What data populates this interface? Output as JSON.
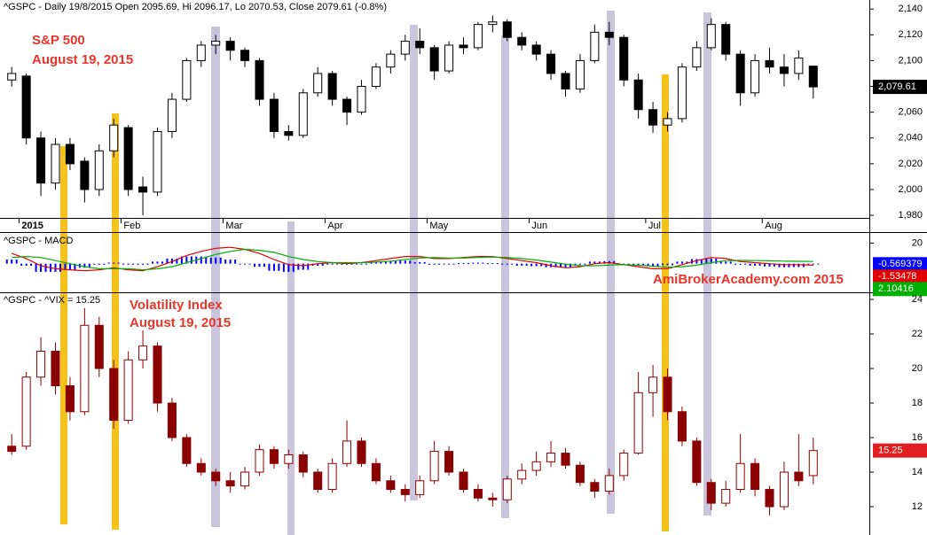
{
  "chart_data": [
    {
      "type": "candlestick",
      "title": "^GSPC - Daily 19/8/2015 Open 2095.69, Hi 2096.17, Lo 2070.53, Close 2079.61 (-0.8%)",
      "annotations": [
        "S&P 500",
        "August 19, 2015"
      ],
      "categories": [
        null,
        "2015",
        null,
        null,
        null,
        null,
        null,
        null,
        "Feb",
        null,
        null,
        null,
        null,
        null,
        null,
        "Mar",
        null,
        null,
        null,
        null,
        null,
        null,
        "Apr",
        null,
        null,
        null,
        null,
        null,
        null,
        "May",
        null,
        null,
        null,
        null,
        null,
        null,
        "Jun",
        null,
        null,
        null,
        null,
        null,
        null,
        null,
        "Jul",
        null,
        null,
        null,
        null,
        null,
        null,
        null,
        "Aug",
        null,
        null,
        null
      ],
      "ohlc": [
        [
          2085,
          2095,
          2080,
          2090
        ],
        [
          2088,
          2090,
          2035,
          2040
        ],
        [
          2040,
          2045,
          1995,
          2005
        ],
        [
          2005,
          2040,
          2000,
          2035
        ],
        [
          2035,
          2040,
          2015,
          2020
        ],
        [
          2022,
          2025,
          1990,
          2000
        ],
        [
          2000,
          2035,
          1995,
          2030
        ],
        [
          2030,
          2055,
          2025,
          2050
        ],
        [
          2048,
          2050,
          1995,
          2000
        ],
        [
          2002,
          2010,
          1980,
          1998
        ],
        [
          1998,
          2048,
          1995,
          2045
        ],
        [
          2045,
          2075,
          2040,
          2070
        ],
        [
          2070,
          2102,
          2068,
          2100
        ],
        [
          2100,
          2115,
          2095,
          2112
        ],
        [
          2112,
          2120,
          2105,
          2115
        ],
        [
          2115,
          2118,
          2100,
          2108
        ],
        [
          2108,
          2110,
          2095,
          2100
        ],
        [
          2100,
          2102,
          2065,
          2070
        ],
        [
          2070,
          2075,
          2040,
          2045
        ],
        [
          2045,
          2050,
          2038,
          2042
        ],
        [
          2042,
          2078,
          2040,
          2075
        ],
        [
          2075,
          2095,
          2072,
          2090
        ],
        [
          2090,
          2092,
          2065,
          2070
        ],
        [
          2070,
          2072,
          2050,
          2060
        ],
        [
          2060,
          2085,
          2058,
          2080
        ],
        [
          2080,
          2098,
          2078,
          2095
        ],
        [
          2095,
          2108,
          2090,
          2105
        ],
        [
          2105,
          2120,
          2100,
          2115
        ],
        [
          2115,
          2125,
          2105,
          2110
        ],
        [
          2110,
          2112,
          2085,
          2092
        ],
        [
          2092,
          2115,
          2090,
          2112
        ],
        [
          2112,
          2118,
          2105,
          2110
        ],
        [
          2110,
          2130,
          2108,
          2128
        ],
        [
          2128,
          2135,
          2122,
          2130
        ],
        [
          2130,
          2132,
          2115,
          2118
        ],
        [
          2118,
          2122,
          2108,
          2112
        ],
        [
          2112,
          2115,
          2100,
          2105
        ],
        [
          2105,
          2108,
          2085,
          2090
        ],
        [
          2090,
          2092,
          2072,
          2078
        ],
        [
          2078,
          2105,
          2075,
          2100
        ],
        [
          2100,
          2128,
          2098,
          2122
        ],
        [
          2122,
          2130,
          2112,
          2118
        ],
        [
          2118,
          2120,
          2080,
          2085
        ],
        [
          2085,
          2090,
          2055,
          2062
        ],
        [
          2062,
          2068,
          2044,
          2050
        ],
        [
          2050,
          2060,
          2045,
          2055
        ],
        [
          2055,
          2098,
          2052,
          2095
        ],
        [
          2095,
          2115,
          2092,
          2110
        ],
        [
          2110,
          2133,
          2108,
          2128
        ],
        [
          2128,
          2130,
          2100,
          2105
        ],
        [
          2105,
          2108,
          2065,
          2075
        ],
        [
          2075,
          2105,
          2072,
          2100
        ],
        [
          2100,
          2110,
          2090,
          2095
        ],
        [
          2095,
          2105,
          2080,
          2090
        ],
        [
          2090,
          2108,
          2085,
          2102
        ],
        [
          2095.69,
          2096.17,
          2070.53,
          2079.61
        ]
      ],
      "up_color": "#ffffff",
      "down_color": "#000000",
      "outline_color": "#000000",
      "ylim": [
        1967,
        2147
      ],
      "yticks": [
        {
          "value": 1980,
          "label": "1,980"
        },
        {
          "value": 2000,
          "label": "2,000"
        },
        {
          "value": 2020,
          "label": "2,020"
        },
        {
          "value": 2040,
          "label": "2,040"
        },
        {
          "value": 2060,
          "label": "2,060"
        },
        {
          "value": 2080,
          "label": "2,080"
        },
        {
          "value": 2100,
          "label": "2,100"
        },
        {
          "value": 2120,
          "label": "2,120"
        },
        {
          "value": 2140,
          "label": "2,140"
        }
      ],
      "last_value": {
        "value": 2079.61,
        "label": "2,079.61"
      },
      "last_color": "#000000"
    },
    {
      "type": "macd",
      "title": "^GSPC - MACD",
      "annotations": [
        "AmiBrokerAcademy.com 2015"
      ],
      "ylim": [
        -28,
        30
      ],
      "yticks": [
        20
      ],
      "series": [
        {
          "type": "bar",
          "color": "#0000ff",
          "last_value": -0.569379,
          "values": [
            4,
            -2,
            -8,
            -8,
            -6,
            -4,
            -1,
            1,
            -1,
            -1,
            2,
            5,
            7,
            7,
            6,
            4,
            0,
            -3,
            -7,
            -8,
            -6,
            -2,
            0,
            -1,
            0,
            1.5,
            2.5,
            3,
            1.5,
            -1,
            -0.5,
            0.5,
            1,
            0.5,
            -1,
            -2,
            -2.5,
            -3.5,
            -3.5,
            -1,
            2,
            2.5,
            0,
            -1.5,
            -2.5,
            -1.5,
            2,
            4.5,
            5,
            2,
            -1,
            -2,
            -2.8,
            -3.5,
            -3.3,
            -0.569379
          ]
        },
        {
          "type": "line",
          "color": "#e00000",
          "last_value": -1.53478,
          "values": [
            10,
            5,
            -2,
            -5,
            -6,
            -7,
            -6,
            -4,
            -6,
            -7,
            -3,
            2,
            8,
            12,
            15,
            16,
            14,
            10,
            4,
            -1,
            -2,
            0,
            1,
            0,
            1,
            3,
            5,
            7,
            7,
            5,
            5,
            6,
            7,
            7,
            5,
            3,
            1,
            -2,
            -4,
            -3,
            0,
            1,
            -1,
            -3,
            -5,
            -5,
            -1,
            3,
            6,
            5,
            2,
            1,
            0,
            -1,
            -1,
            -1.53478
          ]
        },
        {
          "type": "line",
          "color": "#00b000",
          "last_value": 2.10416,
          "values": [
            6,
            7,
            6,
            3,
            0,
            -3,
            -5,
            -5,
            -5,
            -6,
            -5,
            -3,
            1,
            5,
            9,
            12,
            14,
            13,
            11,
            7,
            4,
            2,
            1,
            1,
            1,
            1.5,
            2.5,
            4,
            5.5,
            6,
            5.5,
            5.5,
            6,
            6.5,
            6,
            5,
            3.5,
            1.5,
            -0.5,
            -2,
            -2,
            -1.5,
            -1,
            -1.5,
            -2.5,
            -3.5,
            -3,
            -1.5,
            1,
            3,
            3.2,
            3,
            2.8,
            2.5,
            2.3,
            2.10416
          ]
        }
      ]
    },
    {
      "type": "candlestick",
      "title": "^GSPC - ^VIX = 15.25",
      "annotations": [
        "Volatility Index",
        "August 19, 2015"
      ],
      "ohlc": [
        [
          15.5,
          16.2,
          15,
          15.2
        ],
        [
          15.5,
          19.8,
          15.3,
          19.5
        ],
        [
          19.5,
          21.8,
          19,
          21
        ],
        [
          21,
          21.5,
          18.5,
          19
        ],
        [
          19,
          19.5,
          17,
          17.5
        ],
        [
          17.5,
          23.5,
          17.3,
          22.5
        ],
        [
          22.5,
          23,
          19.5,
          20
        ],
        [
          20,
          20.5,
          16.5,
          17
        ],
        [
          17,
          21,
          16.8,
          20.5
        ],
        [
          20.5,
          22.2,
          20,
          21.3
        ],
        [
          21.3,
          21.5,
          17.5,
          18
        ],
        [
          18,
          18.3,
          15.8,
          16
        ],
        [
          16,
          16.2,
          14.3,
          14.5
        ],
        [
          14.5,
          14.8,
          13.8,
          14
        ],
        [
          14,
          14.2,
          13.2,
          13.5
        ],
        [
          13.5,
          14,
          12.8,
          13.2
        ],
        [
          13.2,
          14.3,
          13,
          14
        ],
        [
          14,
          15.6,
          13.8,
          15.3
        ],
        [
          15.3,
          15.5,
          14.2,
          14.5
        ],
        [
          14.5,
          15.3,
          14.2,
          15
        ],
        [
          15,
          15.2,
          13.7,
          14
        ],
        [
          14,
          14.2,
          12.8,
          13
        ],
        [
          13,
          14.8,
          12.8,
          14.5
        ],
        [
          14.5,
          17,
          14.3,
          15.8
        ],
        [
          15.8,
          16,
          14.3,
          14.5
        ],
        [
          14.5,
          14.8,
          13.3,
          13.5
        ],
        [
          13.5,
          13.8,
          12.8,
          13
        ],
        [
          13,
          13.3,
          12.3,
          12.7
        ],
        [
          12.7,
          13.8,
          12.5,
          13.5
        ],
        [
          13.5,
          15.8,
          13.3,
          15.2
        ],
        [
          15.2,
          15.5,
          13.8,
          14
        ],
        [
          14,
          14.2,
          12.8,
          13
        ],
        [
          13,
          13.3,
          12.3,
          12.5
        ],
        [
          12.5,
          12.8,
          12,
          12.4
        ],
        [
          12.4,
          13.8,
          12.2,
          13.6
        ],
        [
          13.6,
          14.5,
          13.3,
          14.1
        ],
        [
          14.1,
          15.2,
          13.8,
          14.6
        ],
        [
          14.6,
          15.8,
          14.3,
          15.1
        ],
        [
          15.1,
          15.4,
          14.2,
          14.4
        ],
        [
          14.4,
          14.6,
          13.2,
          13.4
        ],
        [
          13.4,
          13.6,
          12.5,
          12.9
        ],
        [
          12.9,
          14.2,
          12.7,
          13.8
        ],
        [
          13.8,
          15.3,
          13.5,
          15.1
        ],
        [
          15.1,
          19.8,
          15,
          18.6
        ],
        [
          18.6,
          20.2,
          17.2,
          19.5
        ],
        [
          19.5,
          20,
          17,
          17.5
        ],
        [
          17.5,
          17.8,
          15.5,
          15.8
        ],
        [
          15.8,
          16,
          13.2,
          13.4
        ],
        [
          13.4,
          13.6,
          11.8,
          12.2
        ],
        [
          12.2,
          13.5,
          12,
          13
        ],
        [
          13,
          16.2,
          12.8,
          14.5
        ],
        [
          14.5,
          14.8,
          12.6,
          13
        ],
        [
          13,
          13.2,
          11.5,
          12
        ],
        [
          12,
          14.6,
          11.8,
          14
        ],
        [
          14,
          16.2,
          13.2,
          13.5
        ],
        [
          13.8,
          16,
          13.3,
          15.25
        ]
      ],
      "up_color": "#ffffff",
      "down_color": "#8b0000",
      "outline_color": "#8b0000",
      "ylim": [
        10.36,
        24.36
      ],
      "yticks": [
        12,
        14,
        16,
        18,
        20,
        22,
        24
      ],
      "last_value": 15.25,
      "last_color": "#e02020"
    }
  ]
}
